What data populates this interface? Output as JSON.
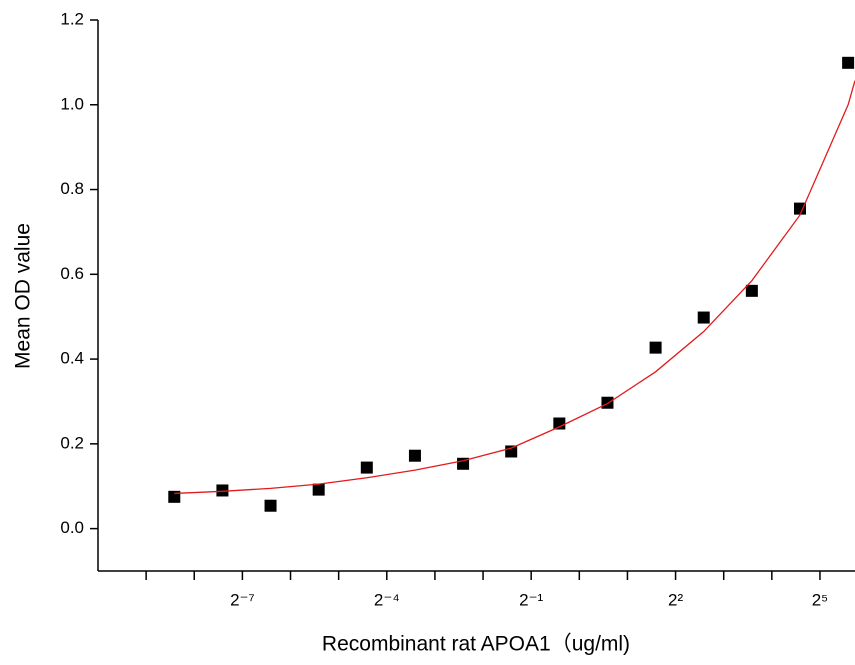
{
  "chart_data": {
    "type": "scatter",
    "x_label": "Recombinant rat APOA1（ug/ml)",
    "y_label": "Mean OD value",
    "xscale": "log",
    "xbase": 2,
    "xlim": [
      0.0009765625,
      53
    ],
    "xticks": [
      {
        "value": 0.0078125,
        "label": "2⁻⁷"
      },
      {
        "value": 0.0625,
        "label": "2⁻⁴"
      },
      {
        "value": 0.5,
        "label": "2⁻¹"
      },
      {
        "value": 4,
        "label": "2²"
      },
      {
        "value": 32,
        "label": "2⁵"
      }
    ],
    "xminor_ticks": [
      0.001953125,
      0.00390625,
      0.015625,
      0.03125,
      0.125,
      0.25,
      1,
      2,
      8,
      16
    ],
    "ylim": [
      -0.1,
      1.2
    ],
    "yticks": [
      {
        "value": 0,
        "label": "0.0"
      },
      0.2,
      0.4,
      0.6,
      0.8,
      {
        "value": 1,
        "label": "1.0"
      },
      1.2
    ],
    "series": [
      {
        "color": "#000000",
        "marker": "square",
        "x": [
          0.0029296875,
          0.005859375,
          0.01171875,
          0.0234375,
          0.046875,
          0.09375,
          0.1875,
          0.375,
          0.75,
          1.5,
          3,
          6,
          12,
          24,
          48
        ],
        "values": [
          0.075,
          0.09,
          0.054,
          0.092,
          0.144,
          0.172,
          0.153,
          0.182,
          0.248,
          0.297,
          0.427,
          0.498,
          0.561,
          0.755,
          1.099
        ]
      },
      {
        "color": "#e31a1c",
        "line": true,
        "x": [
          0.0029296875,
          0.005859375,
          0.01171875,
          0.0234375,
          0.046875,
          0.09375,
          0.1875,
          0.375,
          0.75,
          1.5,
          3,
          6,
          12,
          24,
          48,
          53
        ],
        "values": [
          0.083,
          0.088,
          0.095,
          0.105,
          0.12,
          0.138,
          0.16,
          0.19,
          0.24,
          0.295,
          0.37,
          0.465,
          0.585,
          0.74,
          1.0,
          1.057
        ]
      }
    ]
  }
}
